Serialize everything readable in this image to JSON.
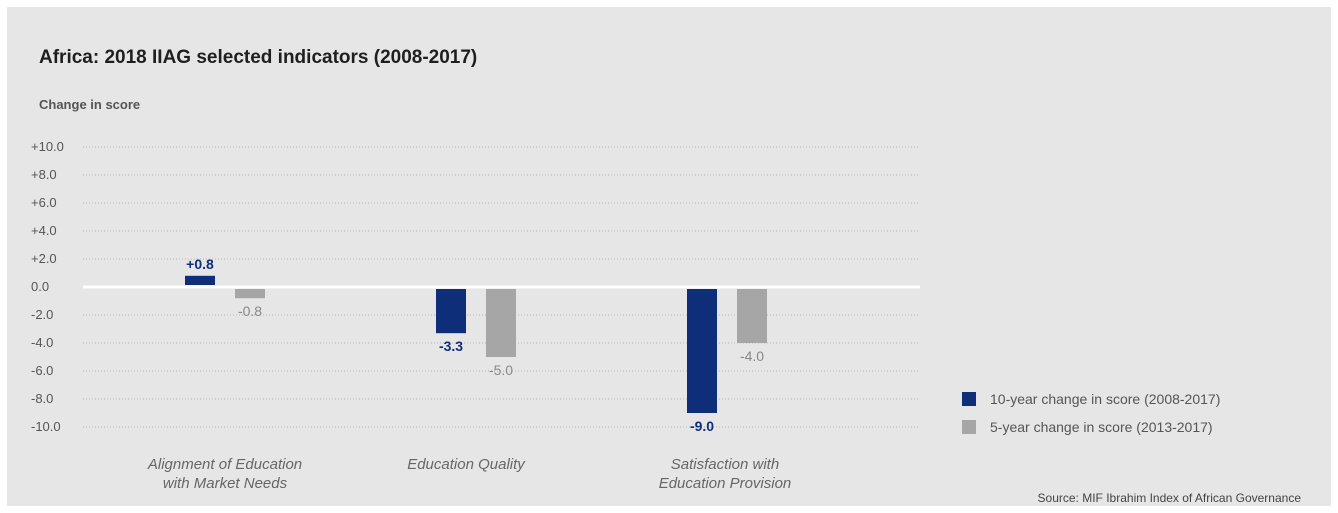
{
  "chart_data": {
    "type": "bar",
    "title": "Africa: 2018 IIAG selected indicators (2008-2017)",
    "ylabel": "Change in score",
    "ylim": [
      -10,
      10
    ],
    "yticks": [
      10,
      8,
      6,
      4,
      2,
      0,
      -2,
      -4,
      -6,
      -8,
      -10
    ],
    "ytick_labels": [
      "+10.0",
      "+8.0",
      "+6.0",
      "+4.0",
      "+2.0",
      "0.0",
      "-2.0",
      "-4.0",
      "-6.0",
      "-8.0",
      "-10.0"
    ],
    "grid": true,
    "legend_position": "right",
    "categories": [
      [
        "Alignment of Education",
        "with Market Needs"
      ],
      [
        "Education Quality"
      ],
      [
        "Satisfaction with",
        "Education Provision"
      ]
    ],
    "series": [
      {
        "name": "10-year change in score (2008-2017)",
        "color": "#0f2e7a",
        "values": [
          0.8,
          -3.3,
          -9.0
        ],
        "labels": [
          "+0.8",
          "-3.3",
          "-9.0"
        ]
      },
      {
        "name": "5-year change in score (2013-2017)",
        "color": "#a6a6a6",
        "values": [
          -0.8,
          -5.0,
          -4.0
        ],
        "labels": [
          "-0.8",
          "-5.0",
          "-4.0"
        ]
      }
    ],
    "source": "Source: MIF Ibrahim Index of African Governance"
  }
}
